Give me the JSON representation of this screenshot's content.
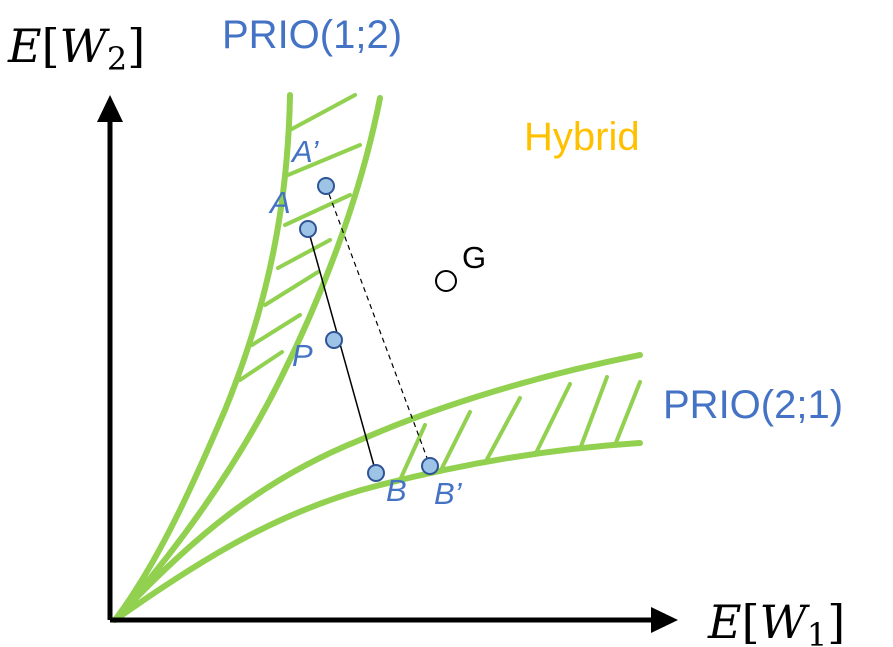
{
  "axes": {
    "y_label_prefix": "E",
    "y_label_open": "[",
    "y_label_var": "W",
    "y_label_sub": "2",
    "y_label_close": "]",
    "x_label_prefix": "E",
    "x_label_open": "[",
    "x_label_var": "W",
    "x_label_sub": "1",
    "x_label_close": "]"
  },
  "regions": {
    "prio12": "PRIO(1;2)",
    "prio21": "PRIO(2;1)",
    "hybrid": "Hybrid"
  },
  "points": {
    "a_prime": "A’",
    "a": "A",
    "p": "P",
    "b": "B",
    "b_prime": "B’",
    "g": "G"
  },
  "colors": {
    "curve_green": "#92d050",
    "label_blue": "#4472c4",
    "hybrid_orange": "#ffc000",
    "point_fill": "#9dc3e6",
    "point_stroke": "#2f5597",
    "axis": "#000000"
  }
}
